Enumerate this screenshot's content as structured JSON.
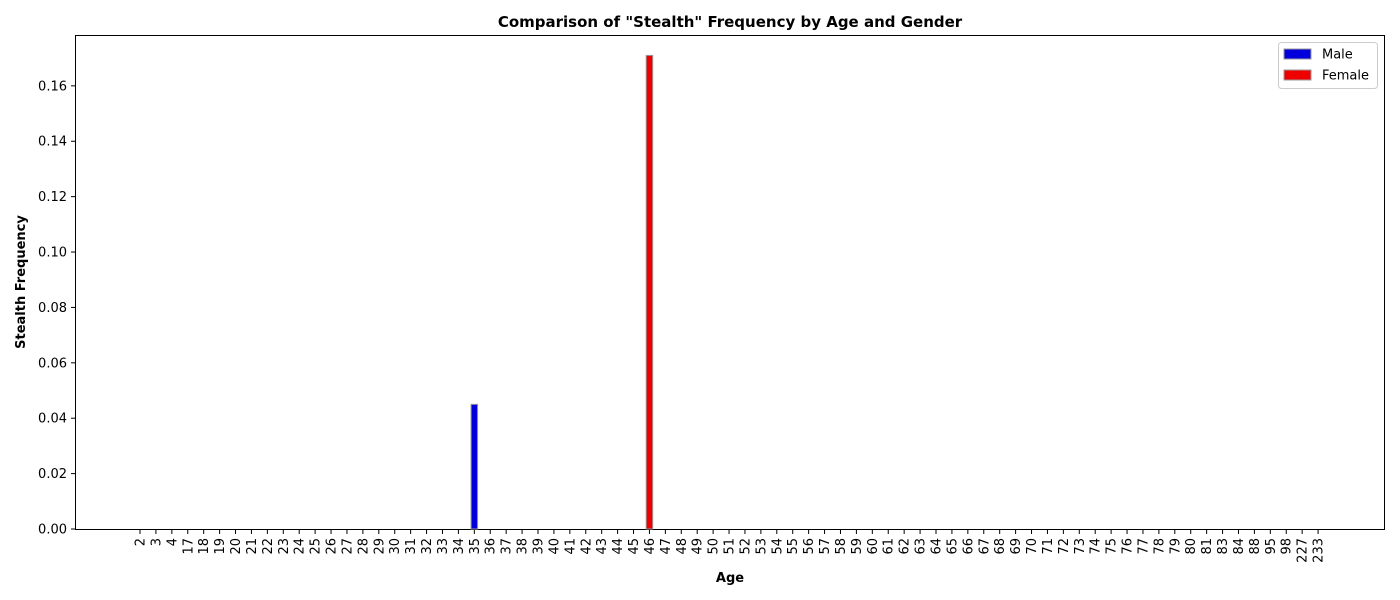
{
  "chart_data": {
    "type": "bar",
    "title": "Comparison of \"Stealth\" Frequency by Age and Gender",
    "xlabel": "Age",
    "ylabel": "Stealth Frequency",
    "ylim": [
      0,
      0.178
    ],
    "yticks": [
      0.0,
      0.02,
      0.04,
      0.06,
      0.08,
      0.1,
      0.12,
      0.14,
      0.16
    ],
    "ytick_labels": [
      "0.00",
      "0.02",
      "0.04",
      "0.06",
      "0.08",
      "0.10",
      "0.12",
      "0.14",
      "0.16"
    ],
    "categories": [
      "2",
      "3",
      "4",
      "17",
      "18",
      "19",
      "20",
      "21",
      "22",
      "23",
      "24",
      "25",
      "26",
      "27",
      "28",
      "29",
      "30",
      "31",
      "32",
      "33",
      "34",
      "35",
      "36",
      "37",
      "38",
      "39",
      "40",
      "41",
      "42",
      "43",
      "44",
      "45",
      "46",
      "47",
      "48",
      "49",
      "50",
      "51",
      "52",
      "53",
      "54",
      "55",
      "56",
      "57",
      "58",
      "59",
      "60",
      "61",
      "62",
      "63",
      "64",
      "65",
      "66",
      "67",
      "68",
      "69",
      "70",
      "71",
      "72",
      "73",
      "74",
      "75",
      "76",
      "77",
      "78",
      "79",
      "80",
      "81",
      "83",
      "84",
      "88",
      "95",
      "98",
      "227",
      "233"
    ],
    "series": [
      {
        "name": "Male",
        "color": "#0000dd",
        "values": [
          0,
          0,
          0,
          0,
          0,
          0,
          0,
          0,
          0,
          0,
          0,
          0,
          0,
          0,
          0,
          0,
          0,
          0,
          0,
          0,
          0,
          0.045,
          0,
          0,
          0,
          0,
          0,
          0,
          0,
          0,
          0,
          0,
          0,
          0,
          0,
          0,
          0,
          0,
          0,
          0,
          0,
          0,
          0,
          0,
          0,
          0,
          0,
          0,
          0,
          0,
          0,
          0,
          0,
          0,
          0,
          0,
          0,
          0,
          0,
          0,
          0,
          0,
          0,
          0,
          0,
          0,
          0,
          0,
          0,
          0,
          0,
          0,
          0,
          0,
          0
        ]
      },
      {
        "name": "Female",
        "color": "#ee0000",
        "values": [
          0,
          0,
          0,
          0,
          0,
          0,
          0,
          0,
          0,
          0,
          0,
          0,
          0,
          0,
          0,
          0,
          0,
          0,
          0,
          0,
          0,
          0,
          0,
          0,
          0,
          0,
          0,
          0,
          0,
          0,
          0,
          0,
          0.171,
          0,
          0,
          0,
          0,
          0,
          0,
          0,
          0,
          0,
          0,
          0,
          0,
          0,
          0,
          0,
          0,
          0,
          0,
          0,
          0,
          0,
          0,
          0,
          0,
          0,
          0,
          0,
          0,
          0,
          0,
          0,
          0,
          0,
          0,
          0,
          0,
          0,
          0,
          0,
          0,
          0,
          0
        ]
      }
    ],
    "legend_position": "top-right",
    "grid": false
  }
}
